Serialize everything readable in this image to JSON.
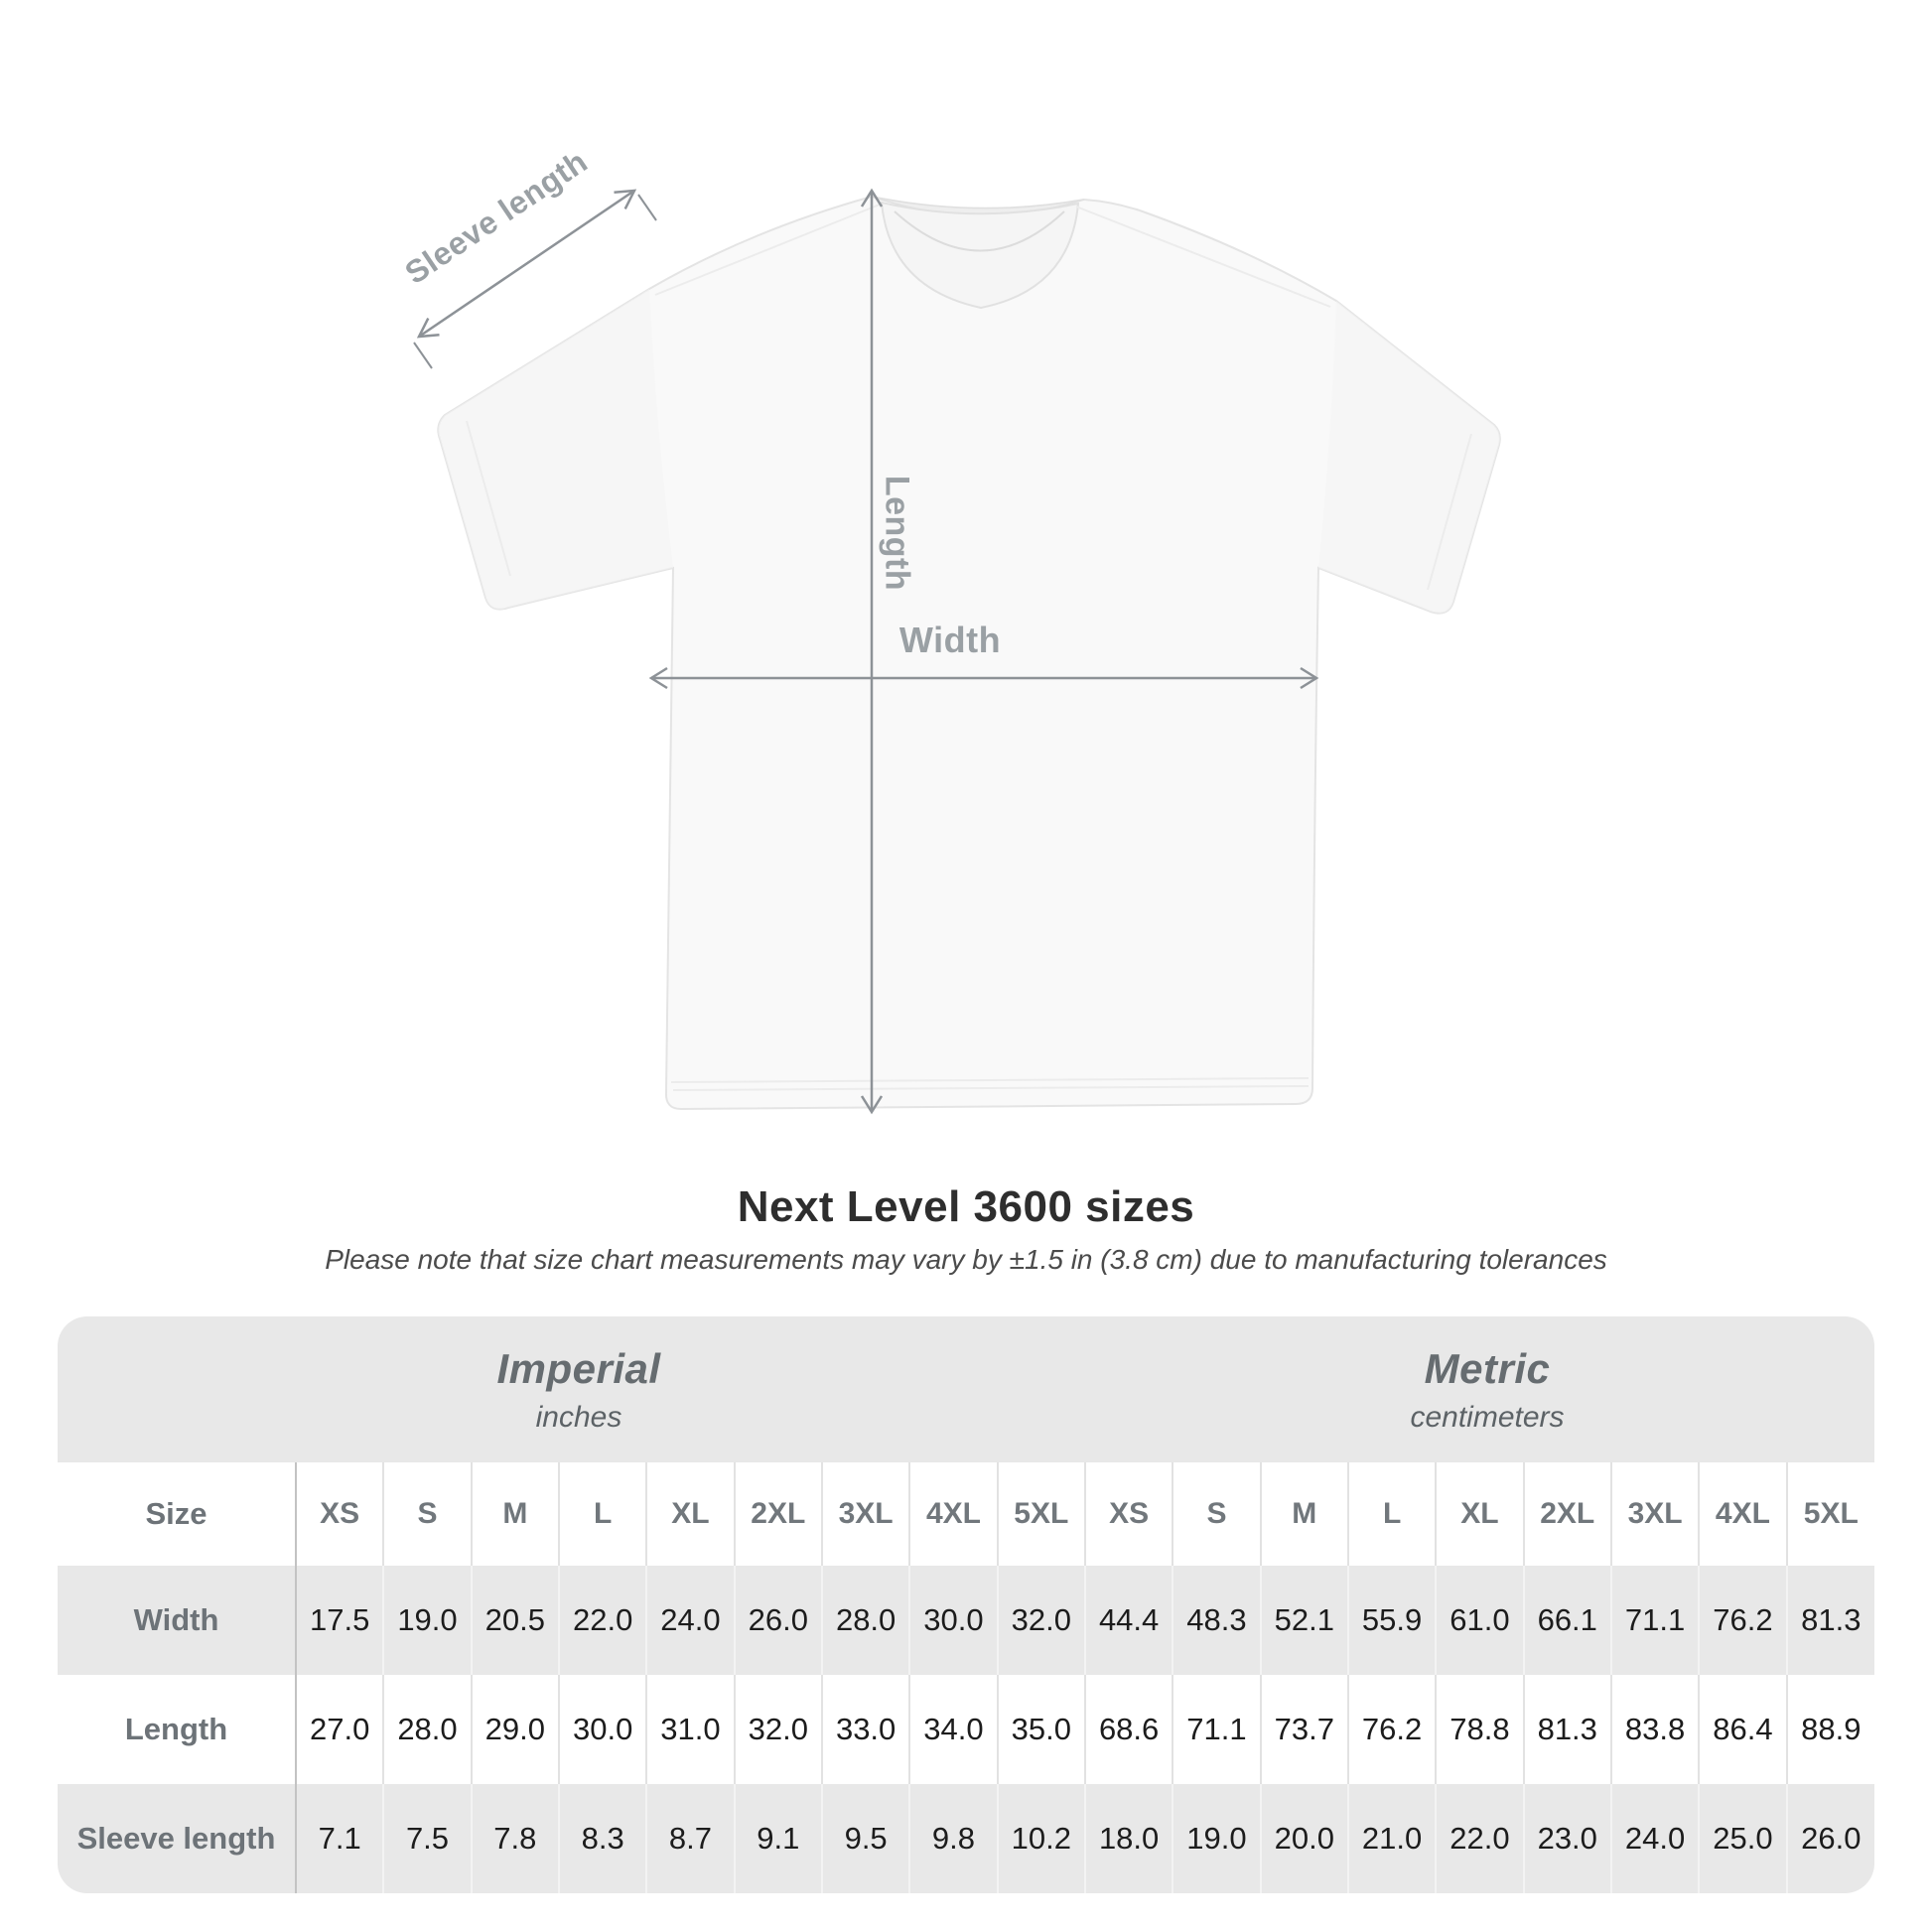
{
  "diagram": {
    "sleeve_label": "Sleeve length",
    "length_label": "Length",
    "width_label": "Width"
  },
  "heading": {
    "title": "Next Level 3600 sizes",
    "subtitle": "Please note that size chart measurements may vary by ±1.5 in (3.8 cm) due to manufacturing tolerances"
  },
  "chart_data": {
    "type": "table",
    "title": "Next Level 3600 sizes",
    "corner_label": "Size",
    "unit_sections": [
      {
        "label": "Imperial",
        "unit": "inches"
      },
      {
        "label": "Metric",
        "unit": "centimeters"
      }
    ],
    "sizes": [
      "XS",
      "S",
      "M",
      "L",
      "XL",
      "2XL",
      "3XL",
      "4XL",
      "5XL"
    ],
    "rows": [
      {
        "label": "Width",
        "imperial": [
          "17.5",
          "19.0",
          "20.5",
          "22.0",
          "24.0",
          "26.0",
          "28.0",
          "30.0",
          "32.0"
        ],
        "metric": [
          "44.4",
          "48.3",
          "52.1",
          "55.9",
          "61.0",
          "66.1",
          "71.1",
          "76.2",
          "81.3"
        ]
      },
      {
        "label": "Length",
        "imperial": [
          "27.0",
          "28.0",
          "29.0",
          "30.0",
          "31.0",
          "32.0",
          "33.0",
          "34.0",
          "35.0"
        ],
        "metric": [
          "68.6",
          "71.1",
          "73.7",
          "76.2",
          "78.8",
          "81.3",
          "83.8",
          "86.4",
          "88.9"
        ]
      },
      {
        "label": "Sleeve length",
        "imperial": [
          "7.1",
          "7.5",
          "7.8",
          "8.3",
          "8.7",
          "9.1",
          "9.5",
          "9.8",
          "10.2"
        ],
        "metric": [
          "18.0",
          "19.0",
          "20.0",
          "21.0",
          "22.0",
          "23.0",
          "24.0",
          "25.0",
          "26.0"
        ]
      }
    ]
  },
  "colors": {
    "table_band": "#e8e8e8",
    "header_text": "#6d7378",
    "value_text": "#1c1c1c",
    "dimension_line": "#8d9297",
    "dimension_label": "#9aa0a4"
  }
}
